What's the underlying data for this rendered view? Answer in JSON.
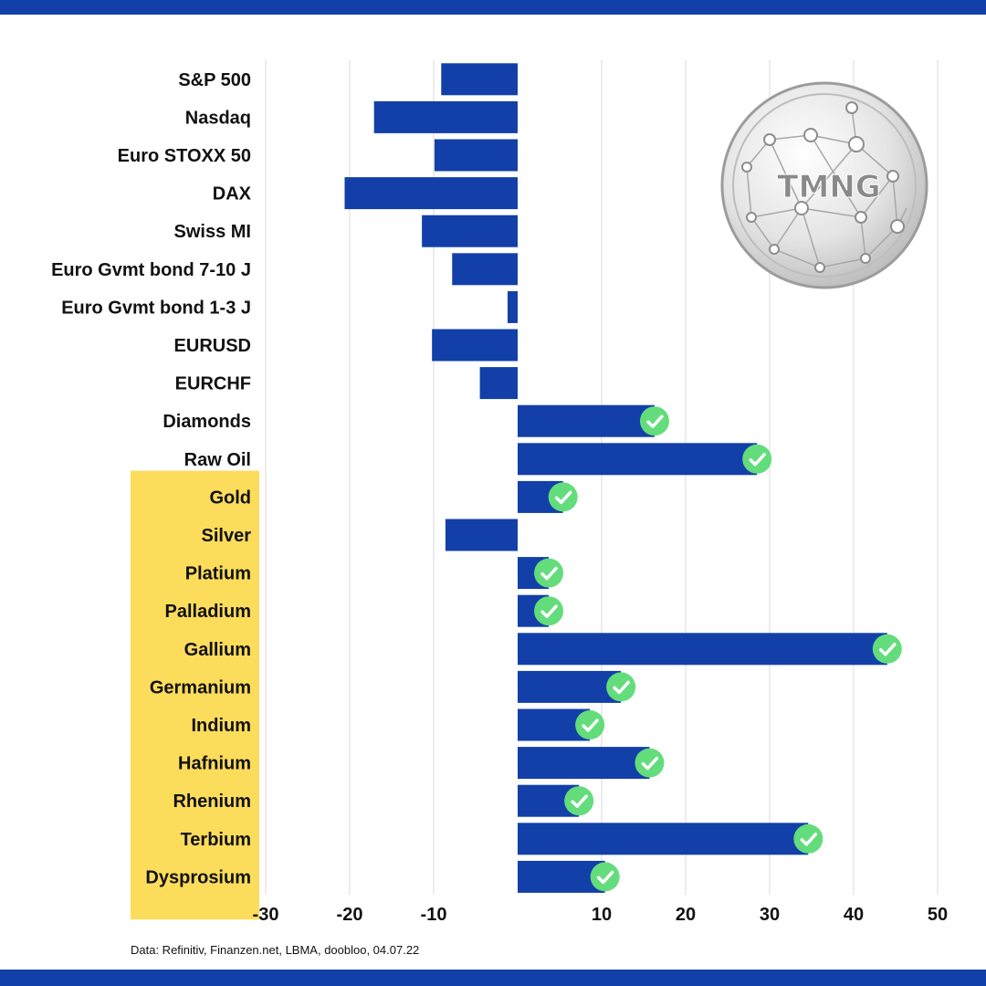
{
  "colors": {
    "band": "#1240a8",
    "bar": "#1240a8",
    "highlight": "#fcdc5b",
    "check": "#63dd7c",
    "grid": "#d8d8d8"
  },
  "logo_text": "TMNG",
  "source": "Data: Refinitiv, Finanzen.net, LBMA, doobloo, 04.07.22",
  "chart_data": {
    "type": "bar",
    "orientation": "horizontal",
    "title": "",
    "xlabel": "",
    "ylabel": "",
    "xlim": [
      -30,
      50
    ],
    "xticks": [
      -30,
      -20,
      -10,
      10,
      20,
      30,
      40,
      50
    ],
    "grid": true,
    "categories": [
      "S&P 500",
      "Nasdaq",
      "Euro STOXX 50",
      "DAX",
      "Swiss MI",
      "Euro Gvmt bond 7-10 J",
      "Euro Gvmt bond 1-3 J",
      "EURUSD",
      "EURCHF",
      "Diamonds",
      "Raw Oil",
      "Gold",
      "Silver",
      "Platium",
      "Palladium",
      "Gallium",
      "Germanium",
      "Indium",
      "Hafnium",
      "Rhenium",
      "Terbium",
      "Dysprosium"
    ],
    "values": [
      -9.1,
      -17.1,
      -9.9,
      -20.6,
      -11.4,
      -7.8,
      -1.2,
      -10.2,
      -4.5,
      16.3,
      28.5,
      5.4,
      -8.6,
      3.7,
      3.7,
      44.0,
      12.3,
      8.6,
      15.7,
      7.3,
      34.6,
      10.4
    ],
    "checked": [
      false,
      false,
      false,
      false,
      false,
      false,
      false,
      false,
      false,
      true,
      true,
      true,
      false,
      true,
      true,
      true,
      true,
      true,
      true,
      true,
      true,
      true
    ],
    "highlighted": [
      false,
      false,
      false,
      false,
      false,
      false,
      false,
      false,
      false,
      false,
      false,
      true,
      true,
      true,
      true,
      true,
      true,
      true,
      true,
      true,
      true,
      true
    ]
  }
}
